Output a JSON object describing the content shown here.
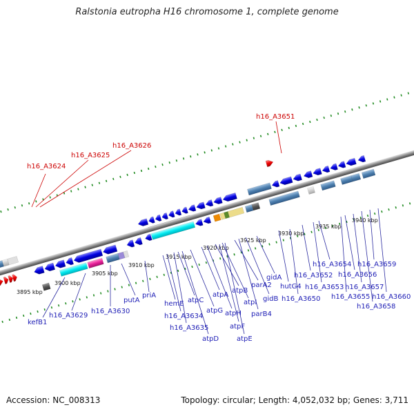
{
  "title": "Ralstonia eutropha H16 chromosome 1, complete genome",
  "footer": {
    "accession": "Accession: NC_008313",
    "summary": "Topology: circular; Length: 4,052,032 bp; Genes: 3,711"
  },
  "ticks": [
    "3895 kbp",
    "3900 kbp",
    "3905 kbp",
    "3910 kbp",
    "3915 kbp",
    "3920 kbp",
    "3925 kbp",
    "3930 kbp",
    "3935 kbp",
    "3940 kbp"
  ],
  "red_labels": [
    "h16_A3624",
    "h16_A3625",
    "h16_A3626",
    "h16_A3651"
  ],
  "blue_labels": [
    "kefB1",
    "h16_A3629",
    "h16_A3630",
    "putA",
    "priA",
    "hemE",
    "h16_A3634",
    "h16_A3635",
    "atpC",
    "atpD",
    "atpG",
    "atpA",
    "atpH",
    "atpB",
    "atpF",
    "atpI",
    "atpE",
    "parA2",
    "parB4",
    "gidB",
    "gidA",
    "hutG4",
    "h16_A3650",
    "h16_A3652",
    "h16_A3653",
    "h16_A3654",
    "h16_A3655",
    "h16_A3656",
    "h16_A3657",
    "h16_A3658",
    "h16_A3659",
    "h16_A3660"
  ],
  "colors": {
    "forward_gene": "#0000ee",
    "reverse_gene": "#ee0000",
    "atp_operon": "#00e5ee",
    "magenta_gene": "#e8209a",
    "steel_gene": "#4f81b0",
    "tick_green": "#1f8a1f"
  }
}
